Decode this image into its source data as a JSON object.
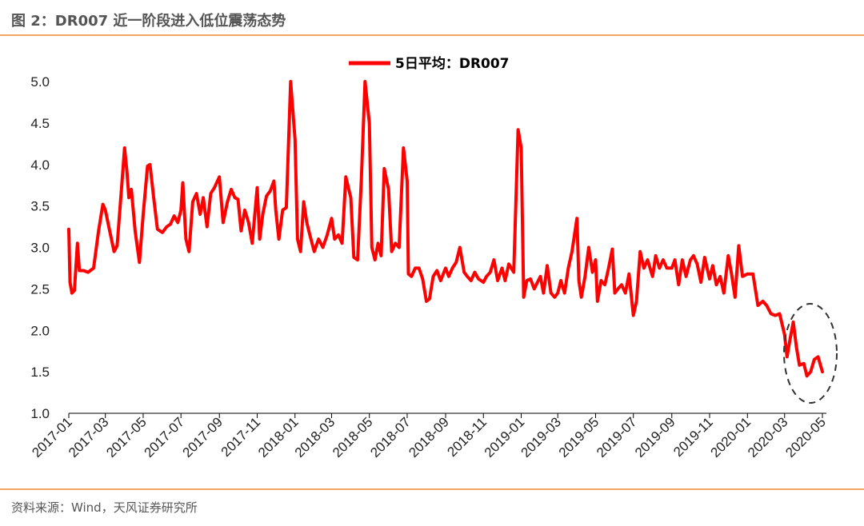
{
  "header": {
    "title": "图 2：DR007 近一阶段进入低位震荡态势"
  },
  "footer": {
    "source": "资料来源：Wind，天风证券研究所"
  },
  "chart_data": {
    "type": "line",
    "title": "",
    "xlabel": "",
    "ylabel": "",
    "ylim": [
      1.0,
      5.0
    ],
    "y_ticks": [
      "1.0",
      "1.5",
      "2.0",
      "2.5",
      "3.0",
      "3.5",
      "4.0",
      "4.5",
      "5.0"
    ],
    "x_ticks": [
      "2017-01",
      "2017-03",
      "2017-05",
      "2017-07",
      "2017-09",
      "2017-11",
      "2018-01",
      "2018-03",
      "2018-05",
      "2018-07",
      "2018-09",
      "2018-11",
      "2019-01",
      "2019-03",
      "2019-05",
      "2019-07",
      "2019-09",
      "2019-11",
      "2020-01",
      "2020-03",
      "2020-05"
    ],
    "grid": false,
    "legend": "top-center",
    "series_color": "#FF0000",
    "annotation": "dashed ellipse around 2020-03 to 2020-05",
    "series": [
      {
        "name": "5日平均：DR007",
        "points": [
          [
            "2017-01",
            3.22
          ],
          [
            "2017-01-03",
            2.58
          ],
          [
            "2017-01-06",
            2.45
          ],
          [
            "2017-01-10",
            2.48
          ],
          [
            "2017-01-15",
            3.05
          ],
          [
            "2017-01-18",
            2.72
          ],
          [
            "2017-01-25",
            2.72
          ],
          [
            "2017-02",
            2.7
          ],
          [
            "2017-02-10",
            2.75
          ],
          [
            "2017-02-18",
            3.2
          ],
          [
            "2017-02-25",
            3.52
          ],
          [
            "2017-03",
            3.45
          ],
          [
            "2017-03-08",
            3.2
          ],
          [
            "2017-03-15",
            2.95
          ],
          [
            "2017-03-20",
            3.02
          ],
          [
            "2017-03-28",
            3.8
          ],
          [
            "2017-04",
            4.2
          ],
          [
            "2017-04-05",
            3.9
          ],
          [
            "2017-04-08",
            3.6
          ],
          [
            "2017-04-12",
            3.7
          ],
          [
            "2017-04-18",
            3.2
          ],
          [
            "2017-04-25",
            2.82
          ],
          [
            "2017-05",
            3.4
          ],
          [
            "2017-05-08",
            3.98
          ],
          [
            "2017-05-12",
            4.0
          ],
          [
            "2017-05-18",
            3.6
          ],
          [
            "2017-05-24",
            3.22
          ],
          [
            "2017-06",
            3.18
          ],
          [
            "2017-06-08",
            3.25
          ],
          [
            "2017-06-14",
            3.28
          ],
          [
            "2017-06-20",
            3.38
          ],
          [
            "2017-06-26",
            3.3
          ],
          [
            "2017-07",
            3.45
          ],
          [
            "2017-07-04",
            3.78
          ],
          [
            "2017-07-09",
            3.1
          ],
          [
            "2017-07-14",
            2.95
          ],
          [
            "2017-07-20",
            3.55
          ],
          [
            "2017-07-26",
            3.65
          ],
          [
            "2017-08",
            3.4
          ],
          [
            "2017-08-06",
            3.6
          ],
          [
            "2017-08-12",
            3.25
          ],
          [
            "2017-08-18",
            3.65
          ],
          [
            "2017-08-24",
            3.72
          ],
          [
            "2017-09",
            3.85
          ],
          [
            "2017-09-07",
            3.3
          ],
          [
            "2017-09-14",
            3.55
          ],
          [
            "2017-09-20",
            3.7
          ],
          [
            "2017-09-26",
            3.6
          ],
          [
            "2017-10",
            3.58
          ],
          [
            "2017-10-06",
            3.2
          ],
          [
            "2017-10-12",
            3.45
          ],
          [
            "2017-10-18",
            3.3
          ],
          [
            "2017-10-24",
            3.05
          ],
          [
            "2017-11",
            3.72
          ],
          [
            "2017-11-05",
            3.1
          ],
          [
            "2017-11-10",
            3.4
          ],
          [
            "2017-11-16",
            3.62
          ],
          [
            "2017-11-22",
            3.68
          ],
          [
            "2017-11-28",
            3.8
          ],
          [
            "2017-12",
            3.45
          ],
          [
            "2017-12-06",
            3.1
          ],
          [
            "2017-12-12",
            3.45
          ],
          [
            "2017-12-18",
            3.48
          ],
          [
            "2017-12-25",
            5.0
          ],
          [
            "2018-01",
            4.3
          ],
          [
            "2018-01-05",
            3.1
          ],
          [
            "2018-01-10",
            2.95
          ],
          [
            "2018-01-15",
            3.55
          ],
          [
            "2018-01-20",
            3.3
          ],
          [
            "2018-01-25",
            3.15
          ],
          [
            "2018-02",
            2.95
          ],
          [
            "2018-02-08",
            3.1
          ],
          [
            "2018-02-15",
            3.0
          ],
          [
            "2018-02-22",
            3.15
          ],
          [
            "2018-03",
            3.35
          ],
          [
            "2018-03-06",
            3.1
          ],
          [
            "2018-03-12",
            3.15
          ],
          [
            "2018-03-18",
            3.05
          ],
          [
            "2018-03-24",
            3.85
          ],
          [
            "2018-04",
            3.6
          ],
          [
            "2018-04-06",
            2.88
          ],
          [
            "2018-04-12",
            2.85
          ],
          [
            "2018-04-18",
            3.8
          ],
          [
            "2018-04-24",
            5.0
          ],
          [
            "2018-05",
            4.5
          ],
          [
            "2018-05-05",
            3.0
          ],
          [
            "2018-05-10",
            2.85
          ],
          [
            "2018-05-15",
            3.05
          ],
          [
            "2018-05-20",
            2.9
          ],
          [
            "2018-05-25",
            3.95
          ],
          [
            "2018-06",
            3.7
          ],
          [
            "2018-06-06",
            2.95
          ],
          [
            "2018-06-12",
            3.05
          ],
          [
            "2018-06-18",
            3.0
          ],
          [
            "2018-06-25",
            4.2
          ],
          [
            "2018-07",
            3.8
          ],
          [
            "2018-07-03",
            2.68
          ],
          [
            "2018-07-08",
            2.65
          ],
          [
            "2018-07-14",
            2.75
          ],
          [
            "2018-07-20",
            2.75
          ],
          [
            "2018-07-26",
            2.62
          ],
          [
            "2018-08",
            2.35
          ],
          [
            "2018-08-06",
            2.38
          ],
          [
            "2018-08-12",
            2.65
          ],
          [
            "2018-08-18",
            2.72
          ],
          [
            "2018-08-24",
            2.6
          ],
          [
            "2018-09",
            2.75
          ],
          [
            "2018-09-06",
            2.65
          ],
          [
            "2018-09-12",
            2.75
          ],
          [
            "2018-09-18",
            2.82
          ],
          [
            "2018-09-24",
            3.0
          ],
          [
            "2018-10",
            2.7
          ],
          [
            "2018-10-06",
            2.65
          ],
          [
            "2018-10-12",
            2.6
          ],
          [
            "2018-10-18",
            2.7
          ],
          [
            "2018-10-24",
            2.62
          ],
          [
            "2018-11",
            2.58
          ],
          [
            "2018-11-06",
            2.65
          ],
          [
            "2018-11-12",
            2.7
          ],
          [
            "2018-11-18",
            2.85
          ],
          [
            "2018-11-24",
            2.6
          ],
          [
            "2018-12",
            2.75
          ],
          [
            "2018-12-06",
            2.6
          ],
          [
            "2018-12-12",
            2.8
          ],
          [
            "2018-12-20",
            2.7
          ],
          [
            "2018-12-27",
            4.42
          ],
          [
            "2019-01",
            4.2
          ],
          [
            "2019-01-05",
            2.4
          ],
          [
            "2019-01-10",
            2.6
          ],
          [
            "2019-01-16",
            2.62
          ],
          [
            "2019-01-22",
            2.5
          ],
          [
            "2019-02",
            2.65
          ],
          [
            "2019-02-06",
            2.45
          ],
          [
            "2019-02-12",
            2.78
          ],
          [
            "2019-02-18",
            2.45
          ],
          [
            "2019-02-24",
            2.4
          ],
          [
            "2019-03",
            2.45
          ],
          [
            "2019-03-06",
            2.6
          ],
          [
            "2019-03-12",
            2.45
          ],
          [
            "2019-03-18",
            2.75
          ],
          [
            "2019-03-24",
            2.95
          ],
          [
            "2019-04",
            3.35
          ],
          [
            "2019-04-04",
            2.6
          ],
          [
            "2019-04-08",
            2.4
          ],
          [
            "2019-04-14",
            2.65
          ],
          [
            "2019-04-20",
            3.0
          ],
          [
            "2019-04-26",
            2.7
          ],
          [
            "2019-05",
            2.85
          ],
          [
            "2019-05-04",
            2.35
          ],
          [
            "2019-05-10",
            2.6
          ],
          [
            "2019-05-16",
            2.55
          ],
          [
            "2019-05-22",
            2.75
          ],
          [
            "2019-05-28",
            2.98
          ],
          [
            "2019-06",
            2.45
          ],
          [
            "2019-06-06",
            2.5
          ],
          [
            "2019-06-12",
            2.55
          ],
          [
            "2019-06-18",
            2.45
          ],
          [
            "2019-06-24",
            2.68
          ],
          [
            "2019-07",
            2.18
          ],
          [
            "2019-07-06",
            2.35
          ],
          [
            "2019-07-12",
            2.95
          ],
          [
            "2019-07-18",
            2.75
          ],
          [
            "2019-07-24",
            2.85
          ],
          [
            "2019-08",
            2.65
          ],
          [
            "2019-08-06",
            2.9
          ],
          [
            "2019-08-12",
            2.75
          ],
          [
            "2019-08-18",
            2.85
          ],
          [
            "2019-08-24",
            2.75
          ],
          [
            "2019-09",
            2.75
          ],
          [
            "2019-09-06",
            2.85
          ],
          [
            "2019-09-12",
            2.55
          ],
          [
            "2019-09-18",
            2.85
          ],
          [
            "2019-09-24",
            2.65
          ],
          [
            "2019-10",
            2.85
          ],
          [
            "2019-10-06",
            2.9
          ],
          [
            "2019-10-12",
            2.8
          ],
          [
            "2019-10-18",
            2.58
          ],
          [
            "2019-10-24",
            2.88
          ],
          [
            "2019-11",
            2.62
          ],
          [
            "2019-11-06",
            2.78
          ],
          [
            "2019-11-12",
            2.55
          ],
          [
            "2019-11-18",
            2.65
          ],
          [
            "2019-11-24",
            2.45
          ],
          [
            "2019-12",
            2.9
          ],
          [
            "2019-12-06",
            2.7
          ],
          [
            "2019-12-12",
            2.4
          ],
          [
            "2019-12-18",
            3.02
          ],
          [
            "2019-12-24",
            2.65
          ],
          [
            "2020-01",
            2.68
          ],
          [
            "2020-01-10",
            2.68
          ],
          [
            "2020-01-18",
            2.3
          ],
          [
            "2020-01-26",
            2.35
          ],
          [
            "2020-02",
            2.3
          ],
          [
            "2020-02-08",
            2.2
          ],
          [
            "2020-02-15",
            2.18
          ],
          [
            "2020-02-22",
            2.2
          ],
          [
            "2020-03",
            1.95
          ],
          [
            "2020-03-05",
            1.68
          ],
          [
            "2020-03-10",
            1.9
          ],
          [
            "2020-03-15",
            2.1
          ],
          [
            "2020-03-20",
            1.8
          ],
          [
            "2020-03-25",
            1.58
          ],
          [
            "2020-04",
            1.6
          ],
          [
            "2020-04-06",
            1.45
          ],
          [
            "2020-04-12",
            1.5
          ],
          [
            "2020-04-18",
            1.65
          ],
          [
            "2020-04-24",
            1.68
          ],
          [
            "2020-05",
            1.5
          ]
        ]
      }
    ]
  }
}
